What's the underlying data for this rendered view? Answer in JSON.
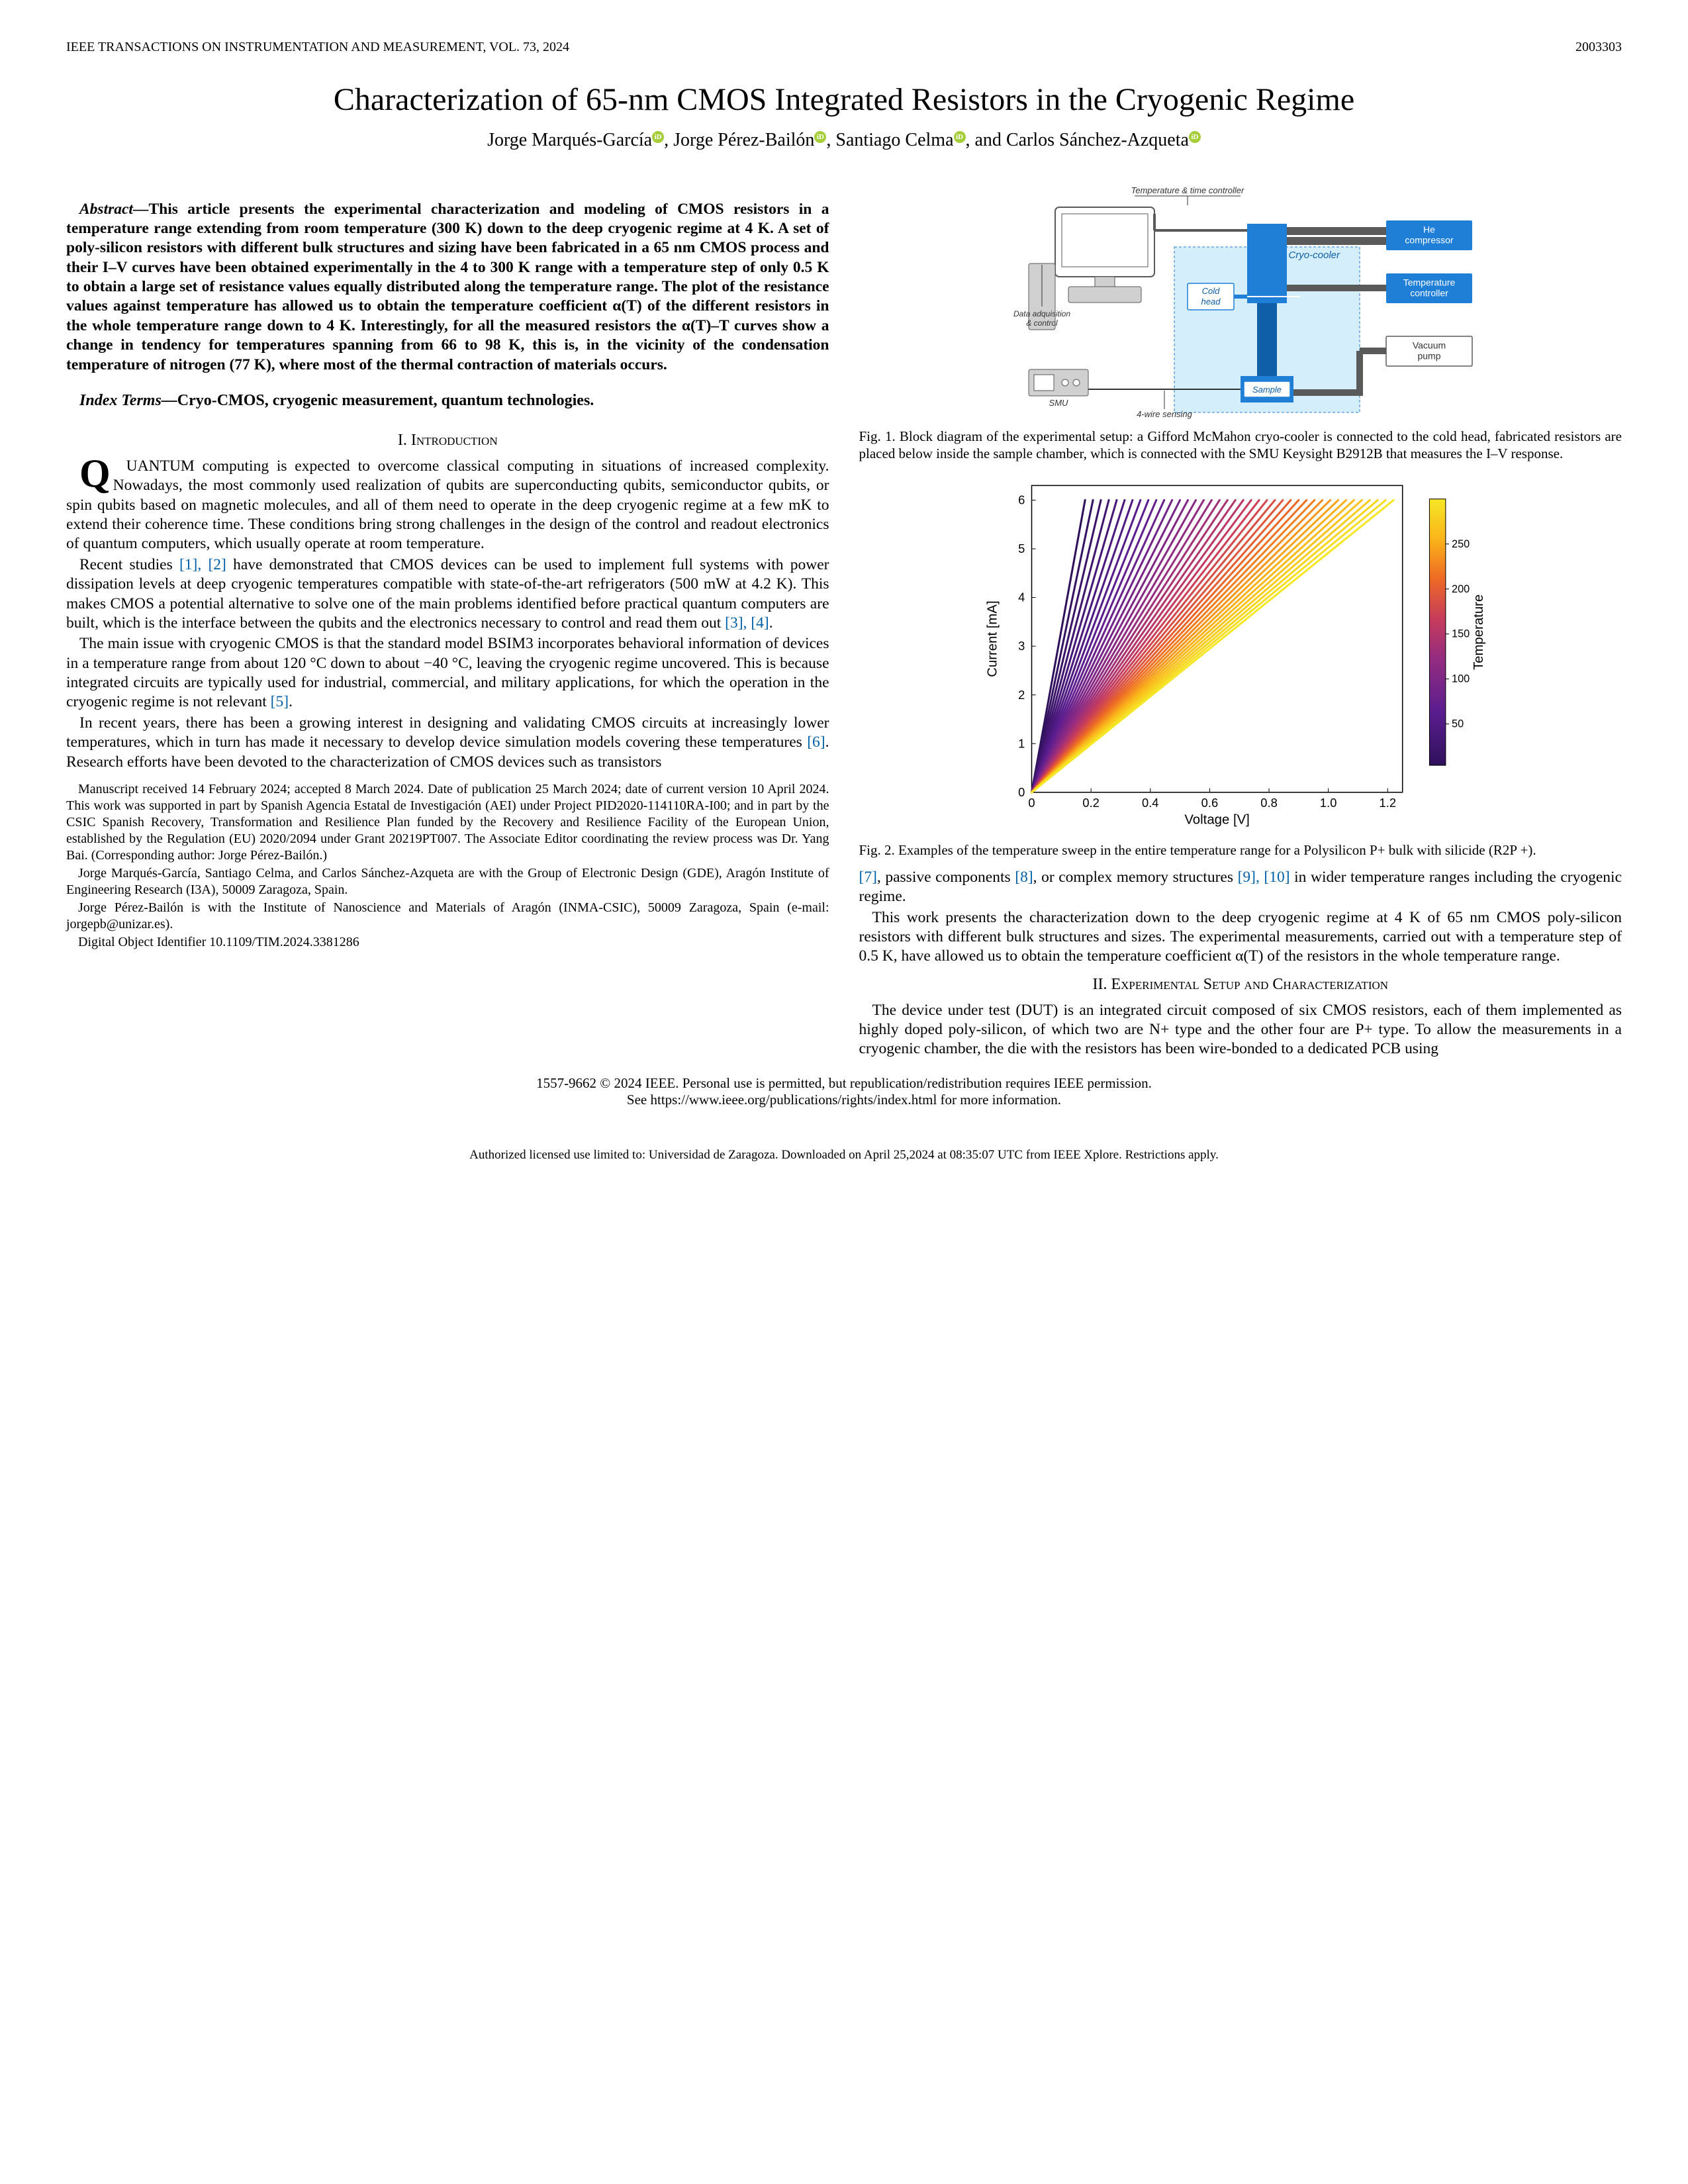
{
  "header": {
    "journal": "IEEE TRANSACTIONS ON INSTRUMENTATION AND MEASUREMENT, VOL. 73, 2024",
    "article_no": "2003303"
  },
  "title": "Characterization of 65-nm CMOS Integrated Resistors in the Cryogenic Regime",
  "authors": {
    "a1": "Jorge Marqués-García",
    "a2": "Jorge Pérez-Bailón",
    "a3": "Santiago Celma",
    "a4": "Carlos Sánchez-Azqueta",
    "sep": ", ",
    "and_sep": ", and "
  },
  "abstract_label": "Abstract—",
  "abstract_text": "This article presents the experimental characterization and modeling of CMOS resistors in a temperature range extending from room temperature (300 K) down to the deep cryogenic regime at 4 K. A set of poly-silicon resistors with different bulk structures and sizing have been fabricated in a 65 nm CMOS process and their I–V curves have been obtained experimentally in the 4 to 300 K range with a temperature step of only 0.5 K to obtain a large set of resistance values equally distributed along the temperature range. The plot of the resistance values against temperature has allowed us to obtain the temperature coefficient α(T) of the different resistors in the whole temperature range down to 4 K. Interestingly, for all the measured resistors the α(T)–T curves show a change in tendency for temperatures spanning from 66 to 98 K, this is, in the vicinity of the condensation temperature of nitrogen (77 K), where most of the thermal contraction of materials occurs.",
  "index_label": "Index Terms—",
  "index_terms": "Cryo-CMOS, cryogenic measurement, quantum technologies.",
  "sec1_head": "I.  Introduction",
  "para1": "QUANTUM computing is expected to overcome classical computing in situations of increased complexity. Nowadays, the most commonly used realization of qubits are superconducting qubits, semiconductor qubits, or spin qubits based on magnetic molecules, and all of them need to operate in the deep cryogenic regime at a few mK to extend their coherence time. These conditions bring strong challenges in the design of the control and readout electronics of quantum computers, which usually operate at room temperature.",
  "para2a": "Recent studies ",
  "ref12": "[1], [2]",
  "para2b": " have demonstrated that CMOS devices can be used to implement full systems with power dissipation levels at deep cryogenic temperatures compatible with state-of-the-art refrigerators (500 mW at 4.2 K). This makes CMOS a potential alternative to solve one of the main problems identified before practical quantum computers are built, which is the interface between the qubits and the electronics necessary to control and read them out ",
  "ref34": "[3], [4]",
  "period": ".",
  "para3a": "The main issue with cryogenic CMOS is that the standard model BSIM3 incorporates behavioral information of devices in a temperature range from about 120 °C down to about −40 °C, leaving the cryogenic regime uncovered. This is because integrated circuits are typically used for industrial, commercial, and military applications, for which the operation in the cryogenic regime is not relevant ",
  "ref5": "[5]",
  "para4a": "In recent years, there has been a growing interest in designing and validating CMOS circuits at increasingly lower temperatures, which in turn has made it necessary to develop device simulation models covering these temperatures ",
  "ref6": "[6]",
  "para4b": ". Research efforts have been devoted to the characterization of CMOS devices such as transistors",
  "footnote1": "Manuscript received 14 February 2024; accepted 8 March 2024. Date of publication 25 March 2024; date of current version 10 April 2024. This work was supported in part by Spanish Agencia Estatal de Investigación (AEI) under Project PID2020-114110RA-I00; and in part by the CSIC Spanish Recovery, Transformation and Resilience Plan funded by the Recovery and Resilience Facility of the European Union, established by the Regulation (EU) 2020/2094 under Grant 20219PT007. The Associate Editor coordinating the review process was Dr. Yang Bai. (Corresponding author: Jorge Pérez-Bailón.)",
  "footnote2": "Jorge Marqués-García, Santiago Celma, and Carlos Sánchez-Azqueta are with the Group of Electronic Design (GDE), Aragón Institute of Engineering Research (I3A), 50009 Zaragoza, Spain.",
  "footnote3": "Jorge Pérez-Bailón is with the Institute of Nanoscience and Materials of Aragón (INMA-CSIC), 50009 Zaragoza, Spain (e-mail: jorgepb@unizar.es).",
  "footnote4": "Digital Object Identifier 10.1109/TIM.2024.3381286",
  "fig1": {
    "caption": "Fig. 1.    Block diagram of the experimental setup: a Gifford McMahon cryo-cooler is connected to the cold head, fabricated resistors are placed below inside the sample chamber, which is connected with the SMU Keysight B2912B that measures the I–V response.",
    "labels": {
      "temp_time": "Temperature & time controller",
      "he_comp": "He compressor",
      "cryo": "Cryo-cooler",
      "temp_ctrl": "Temperature controller",
      "cold_head": "Cold head",
      "vacuum": "Vacuum pump",
      "sample": "Sample",
      "smu": "SMU",
      "daq": "Data adquisition & control",
      "wire": "4-wire sensing"
    },
    "colors": {
      "block_blue": "#1f7fd6",
      "block_blue_dark": "#0e5fa8",
      "light_blue_bg": "#d4eefb",
      "outline_gray": "#5a5a5a",
      "gray_fill": "#d0d0d0",
      "text_blue": "#0e5fa8"
    }
  },
  "fig2": {
    "caption": "Fig. 2.    Examples of the temperature sweep in the entire temperature range for a Polysilicon P+ bulk with silicide (R2P +).",
    "type": "line-fan",
    "xlabel": "Voltage [V]",
    "ylabel": "Current [mA]",
    "cbar_label": "Temperature",
    "xlim": [
      0,
      1.25
    ],
    "ylim": [
      0,
      6.3
    ],
    "xticks": [
      0,
      0.2,
      0.4,
      0.6,
      0.8,
      1.0,
      1.2
    ],
    "yticks": [
      0,
      1,
      2,
      3,
      4,
      5,
      6
    ],
    "cbar_ticks": [
      50,
      100,
      150,
      200,
      250
    ],
    "cbar_range": [
      4,
      300
    ],
    "colormap_stops": [
      {
        "t": 0.0,
        "c": "#30115c"
      },
      {
        "t": 0.2,
        "c": "#5a1d8f"
      },
      {
        "t": 0.4,
        "c": "#942c80"
      },
      {
        "t": 0.55,
        "c": "#c73c5c"
      },
      {
        "t": 0.7,
        "c": "#ed6925"
      },
      {
        "t": 0.85,
        "c": "#fbb41a"
      },
      {
        "t": 1.0,
        "c": "#f5e726"
      }
    ],
    "n_lines": 40,
    "x_end_min": 0.18,
    "x_end_max": 1.22,
    "y_end": 6.0,
    "axis_fontsize": 18,
    "label_fontsize": 20,
    "background": "#ffffff",
    "axis_color": "#000000"
  },
  "col2_para1a": "",
  "ref7": "[7]",
  "col2_para1b": ", passive components ",
  "ref8": "[8]",
  "col2_para1c": ", or complex memory structures ",
  "ref910": "[9], [10]",
  "col2_para1d": " in wider temperature ranges including the cryogenic regime.",
  "col2_para2": "This work presents the characterization down to the deep cryogenic regime at 4 K of 65 nm CMOS poly-silicon resistors with different bulk structures and sizes. The experimental measurements, carried out with a temperature step of 0.5 K, have allowed us to obtain the temperature coefficient α(T) of the resistors in the whole temperature range.",
  "sec2_head": "II.  Experimental Setup and Characterization",
  "col2_para3": "The device under test (DUT) is an integrated circuit composed of six CMOS resistors, each of them implemented as highly doped poly-silicon, of which two are N+ type and the other four are P+ type. To allow the measurements in a cryogenic chamber, the die with the resistors has been wire-bonded to a dedicated PCB using",
  "copyright1": "1557-9662 © 2024 IEEE. Personal use is permitted, but republication/redistribution requires IEEE permission.",
  "copyright2": "See https://www.ieee.org/publications/rights/index.html for more information.",
  "footer": "Authorized licensed use limited to: Universidad de Zaragoza. Downloaded on April 25,2024 at 08:35:07 UTC from IEEE Xplore.  Restrictions apply."
}
